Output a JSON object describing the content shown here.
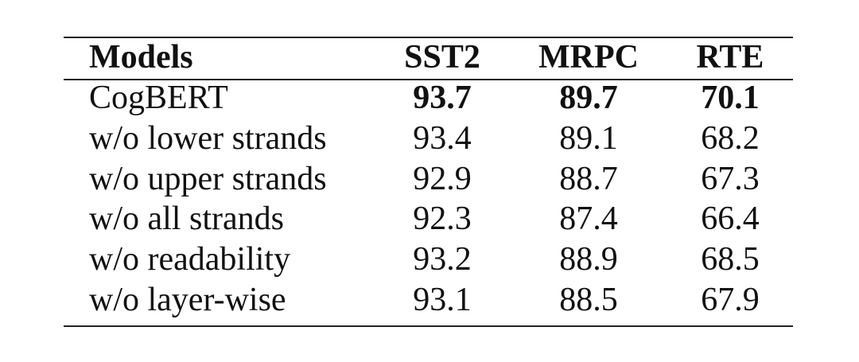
{
  "table": {
    "header": [
      "Models",
      "SST2",
      "MRPC",
      "RTE"
    ],
    "rows": [
      [
        "CogBERT",
        93.7,
        89.7,
        70.1
      ],
      [
        "w/o lower strands",
        93.4,
        89.1,
        68.2
      ],
      [
        "w/o upper strands",
        92.9,
        88.7,
        67.3
      ],
      [
        "w/o all strands",
        92.3,
        87.4,
        66.4
      ],
      [
        "w/o readability",
        93.2,
        88.9,
        68.5
      ],
      [
        "w/o layer-wise",
        93.1,
        88.5,
        67.9
      ]
    ]
  }
}
